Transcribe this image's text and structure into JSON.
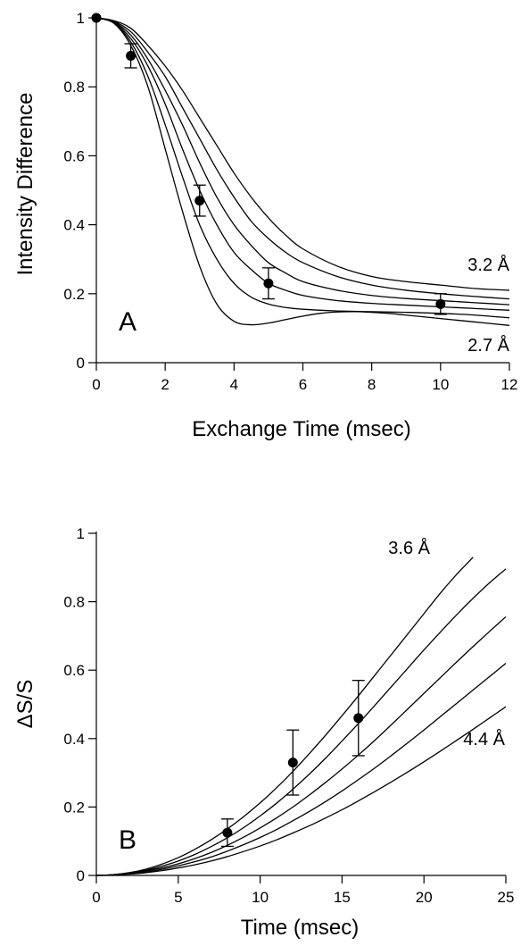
{
  "chart_data": [
    {
      "type": "line",
      "panel_label": "A",
      "xlabel": "Exchange Time (msec)",
      "ylabel": "Intensity Difference",
      "xlim": [
        0,
        12
      ],
      "ylim": [
        0,
        1
      ],
      "xticks": [
        0,
        2,
        4,
        6,
        8,
        10,
        12
      ],
      "yticks": [
        0,
        0.2,
        0.4,
        0.6,
        0.8,
        1
      ],
      "ytick_labels": [
        "0",
        "0.2",
        "0.4",
        "0.6",
        "0.8",
        "1"
      ],
      "x_tick_labels": [
        "0",
        "2",
        "4",
        "6",
        "8",
        "10",
        "12"
      ],
      "curve_labels": [
        {
          "text": "3.2 Å",
          "position": "right-upper"
        },
        {
          "text": "2.7 Å",
          "position": "right-lower"
        }
      ],
      "series": [
        {
          "x": [
            0,
            0.5,
            1,
            1.5,
            2,
            2.5,
            3,
            3.5,
            4,
            4.5,
            5,
            5.5,
            6,
            6.5,
            7,
            7.5,
            8,
            8.5,
            9,
            10,
            11,
            12
          ],
          "values": [
            1,
            0.985,
            0.92,
            0.8,
            0.62,
            0.44,
            0.28,
            0.17,
            0.12,
            0.11,
            0.115,
            0.125,
            0.135,
            0.143,
            0.147,
            0.148,
            0.146,
            0.143,
            0.138,
            0.128,
            0.118,
            0.108
          ]
        },
        {
          "x": [
            0,
            0.5,
            1,
            1.5,
            2,
            2.5,
            3,
            3.5,
            4,
            4.5,
            5,
            5.5,
            6,
            7,
            8,
            9,
            10,
            11,
            12
          ],
          "values": [
            1,
            0.986,
            0.93,
            0.83,
            0.69,
            0.54,
            0.4,
            0.3,
            0.23,
            0.19,
            0.17,
            0.16,
            0.155,
            0.15,
            0.148,
            0.146,
            0.143,
            0.138,
            0.13
          ]
        },
        {
          "x": [
            0,
            0.5,
            1,
            1.5,
            2,
            2.5,
            3,
            3.5,
            4,
            4.5,
            5,
            5.5,
            6,
            7,
            8,
            9,
            10,
            11,
            12
          ],
          "values": [
            1,
            0.987,
            0.94,
            0.86,
            0.75,
            0.62,
            0.5,
            0.4,
            0.32,
            0.27,
            0.23,
            0.21,
            0.195,
            0.18,
            0.172,
            0.167,
            0.162,
            0.157,
            0.152
          ]
        },
        {
          "x": [
            0,
            0.5,
            1,
            1.5,
            2,
            2.5,
            3,
            3.5,
            4,
            4.5,
            5,
            5.5,
            6,
            7,
            8,
            9,
            10,
            11,
            12
          ],
          "values": [
            1,
            0.988,
            0.95,
            0.88,
            0.79,
            0.69,
            0.58,
            0.48,
            0.4,
            0.34,
            0.29,
            0.26,
            0.235,
            0.21,
            0.195,
            0.186,
            0.18,
            0.174,
            0.168
          ]
        },
        {
          "x": [
            0,
            0.5,
            1,
            1.5,
            2,
            2.5,
            3,
            3.5,
            4,
            4.5,
            5,
            5.5,
            6,
            7,
            8,
            9,
            10,
            11,
            12
          ],
          "values": [
            1,
            0.99,
            0.96,
            0.9,
            0.83,
            0.74,
            0.65,
            0.56,
            0.48,
            0.41,
            0.36,
            0.32,
            0.29,
            0.25,
            0.225,
            0.21,
            0.2,
            0.192,
            0.185
          ]
        },
        {
          "x": [
            0,
            0.5,
            1,
            1.5,
            2,
            2.5,
            3,
            3.5,
            4,
            4.5,
            5,
            5.5,
            6,
            7,
            8,
            9,
            10,
            11,
            12
          ],
          "values": [
            1,
            0.992,
            0.97,
            0.92,
            0.86,
            0.79,
            0.71,
            0.63,
            0.55,
            0.48,
            0.42,
            0.37,
            0.33,
            0.28,
            0.25,
            0.235,
            0.225,
            0.215,
            0.21
          ]
        }
      ],
      "points": [
        {
          "x": 0,
          "y": 1.0,
          "err": 0
        },
        {
          "x": 1,
          "y": 0.89,
          "err": 0.035
        },
        {
          "x": 3,
          "y": 0.47,
          "err": 0.045
        },
        {
          "x": 5,
          "y": 0.23,
          "err": 0.045
        },
        {
          "x": 10,
          "y": 0.17,
          "err": 0.03
        }
      ]
    },
    {
      "type": "line",
      "panel_label": "B",
      "xlabel": "Time (msec)",
      "ylabel": "ΔS/S",
      "xlim": [
        0,
        25
      ],
      "ylim": [
        0,
        1
      ],
      "xticks": [
        0,
        5,
        10,
        15,
        20,
        25
      ],
      "yticks": [
        0,
        0.2,
        0.4,
        0.6,
        0.8,
        1
      ],
      "ytick_labels": [
        "0",
        "0.2",
        "0.4",
        "0.6",
        "0.8",
        "1"
      ],
      "x_tick_labels": [
        "0",
        "5",
        "10",
        "15",
        "20",
        "25"
      ],
      "curve_labels": [
        {
          "text": "3.6 Å",
          "position": "top"
        },
        {
          "text": "4.4 Å",
          "position": "right-lower"
        }
      ],
      "series": [
        {
          "x": [
            0,
            1,
            2,
            3,
            4,
            5,
            6,
            7,
            8,
            9,
            10,
            11,
            12,
            13,
            14,
            15,
            16,
            17,
            18,
            19,
            20,
            21,
            22,
            23
          ],
          "values": [
            0,
            0.002,
            0.008,
            0.018,
            0.033,
            0.052,
            0.076,
            0.104,
            0.136,
            0.172,
            0.212,
            0.256,
            0.304,
            0.356,
            0.41,
            0.467,
            0.525,
            0.585,
            0.645,
            0.705,
            0.765,
            0.825,
            0.88,
            0.93
          ]
        },
        {
          "x": [
            0,
            1,
            2,
            3,
            4,
            5,
            6,
            7,
            8,
            9,
            10,
            11,
            12,
            13,
            14,
            15,
            16,
            17,
            18,
            19,
            20,
            21,
            22,
            23,
            24,
            25
          ],
          "values": [
            0,
            0.002,
            0.007,
            0.015,
            0.027,
            0.042,
            0.061,
            0.084,
            0.11,
            0.14,
            0.174,
            0.211,
            0.252,
            0.296,
            0.343,
            0.393,
            0.444,
            0.497,
            0.551,
            0.605,
            0.659,
            0.711,
            0.762,
            0.81,
            0.855,
            0.896
          ]
        },
        {
          "x": [
            0,
            1,
            2,
            3,
            4,
            5,
            6,
            7,
            8,
            9,
            10,
            11,
            12,
            13,
            14,
            15,
            16,
            17,
            18,
            19,
            20,
            21,
            22,
            23,
            24,
            25
          ],
          "values": [
            0,
            0.002,
            0.006,
            0.013,
            0.022,
            0.034,
            0.049,
            0.067,
            0.088,
            0.112,
            0.139,
            0.168,
            0.2,
            0.235,
            0.272,
            0.311,
            0.352,
            0.395,
            0.44,
            0.486,
            0.532,
            0.578,
            0.624,
            0.669,
            0.713,
            0.756
          ]
        },
        {
          "x": [
            0,
            1,
            2,
            3,
            4,
            5,
            6,
            7,
            8,
            9,
            10,
            11,
            12,
            13,
            14,
            15,
            16,
            17,
            18,
            19,
            20,
            21,
            22,
            23,
            24,
            25
          ],
          "values": [
            0,
            0.001,
            0.005,
            0.01,
            0.018,
            0.028,
            0.04,
            0.054,
            0.071,
            0.09,
            0.111,
            0.134,
            0.16,
            0.187,
            0.216,
            0.247,
            0.28,
            0.314,
            0.35,
            0.387,
            0.425,
            0.464,
            0.503,
            0.542,
            0.581,
            0.62
          ]
        },
        {
          "x": [
            0,
            1,
            2,
            3,
            4,
            5,
            6,
            7,
            8,
            9,
            10,
            11,
            12,
            13,
            14,
            15,
            16,
            17,
            18,
            19,
            20,
            21,
            22,
            23,
            24,
            25
          ],
          "values": [
            0,
            0.001,
            0.004,
            0.008,
            0.014,
            0.022,
            0.031,
            0.042,
            0.055,
            0.07,
            0.086,
            0.104,
            0.124,
            0.145,
            0.168,
            0.192,
            0.218,
            0.245,
            0.273,
            0.302,
            0.332,
            0.363,
            0.395,
            0.427,
            0.46,
            0.493
          ]
        }
      ],
      "points": [
        {
          "x": 8,
          "y": 0.125,
          "err": 0.04
        },
        {
          "x": 12,
          "y": 0.33,
          "err": 0.095
        },
        {
          "x": 16,
          "y": 0.46,
          "err": 0.11
        }
      ]
    }
  ]
}
